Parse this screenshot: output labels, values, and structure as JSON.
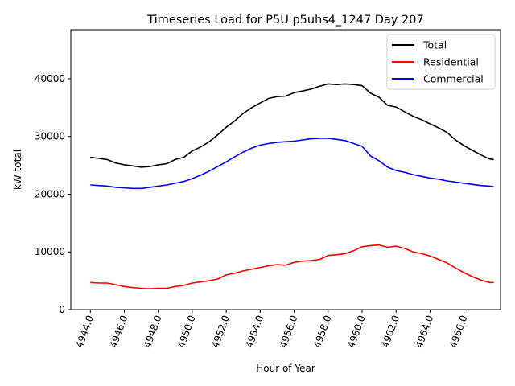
{
  "chart_data": {
    "type": "line",
    "title": "Timeseries Load for P5U p5uhs4_1247  Day 207",
    "xlabel": "Hour of Year",
    "ylabel": "kW total",
    "xlim": [
      4942.85,
      4968.15
    ],
    "ylim": [
      0,
      48500
    ],
    "xticks": [
      4944,
      4946,
      4948,
      4950,
      4952,
      4954,
      4956,
      4958,
      4960,
      4962,
      4964,
      4966
    ],
    "xtick_labels": [
      "4944.0",
      "4946.0",
      "4948.0",
      "4950.0",
      "4952.0",
      "4954.0",
      "4956.0",
      "4958.0",
      "4960.0",
      "4962.0",
      "4964.0",
      "4966.0"
    ],
    "yticks": [
      0,
      10000,
      20000,
      30000,
      40000
    ],
    "ytick_labels": [
      "0",
      "10000",
      "20000",
      "30000",
      "40000"
    ],
    "grid": false,
    "legend_position": "top-right",
    "x": [
      4944.0,
      4944.5,
      4945.0,
      4945.5,
      4946.0,
      4946.5,
      4947.0,
      4947.5,
      4948.0,
      4948.5,
      4949.0,
      4949.5,
      4950.0,
      4950.5,
      4951.0,
      4951.5,
      4952.0,
      4952.5,
      4953.0,
      4953.5,
      4954.0,
      4954.5,
      4955.0,
      4955.5,
      4956.0,
      4956.5,
      4957.0,
      4957.5,
      4958.0,
      4958.5,
      4959.0,
      4959.5,
      4960.0,
      4960.5,
      4961.0,
      4961.5,
      4962.0,
      4962.5,
      4963.0,
      4963.5,
      4964.0,
      4964.5,
      4965.0,
      4965.5,
      4966.0,
      4966.5,
      4967.0,
      4967.5,
      4967.75
    ],
    "series": [
      {
        "name": "Total",
        "color": "#000000",
        "values": [
          26400,
          26200,
          26000,
          25400,
          25100,
          24900,
          24700,
          24800,
          25100,
          25300,
          26000,
          26400,
          27500,
          28200,
          29100,
          30300,
          31600,
          32700,
          34000,
          35000,
          35800,
          36600,
          36900,
          37000,
          37600,
          37900,
          38200,
          38700,
          39100,
          39000,
          39100,
          39000,
          38800,
          37500,
          36800,
          35400,
          35100,
          34300,
          33500,
          32900,
          32200,
          31500,
          30700,
          29400,
          28400,
          27600,
          26800,
          26100,
          26000
        ]
      },
      {
        "name": "Residential",
        "color": "#ff0000",
        "values": [
          4700,
          4600,
          4600,
          4300,
          4000,
          3800,
          3700,
          3600,
          3700,
          3700,
          4000,
          4200,
          4600,
          4800,
          5000,
          5300,
          6000,
          6300,
          6700,
          7000,
          7300,
          7600,
          7800,
          7700,
          8200,
          8400,
          8500,
          8700,
          9400,
          9500,
          9700,
          10200,
          10900,
          11100,
          11200,
          10800,
          11000,
          10600,
          10000,
          9700,
          9300,
          8700,
          8100,
          7200,
          6400,
          5700,
          5100,
          4700,
          4700
        ]
      },
      {
        "name": "Commercial",
        "color": "#0000ff",
        "values": [
          21600,
          21500,
          21400,
          21200,
          21100,
          21000,
          21000,
          21200,
          21400,
          21600,
          21900,
          22200,
          22700,
          23300,
          24000,
          24800,
          25600,
          26500,
          27300,
          28000,
          28500,
          28800,
          29000,
          29100,
          29200,
          29400,
          29600,
          29700,
          29700,
          29500,
          29300,
          28800,
          28300,
          26600,
          25800,
          24700,
          24100,
          23800,
          23400,
          23100,
          22800,
          22600,
          22300,
          22100,
          21900,
          21700,
          21500,
          21400,
          21300
        ]
      }
    ]
  }
}
